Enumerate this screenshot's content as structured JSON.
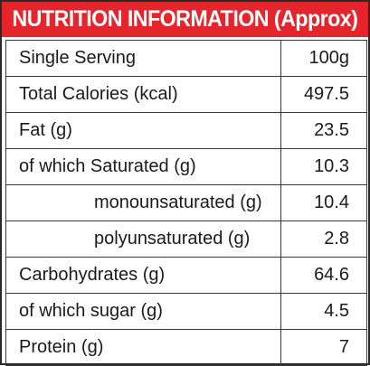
{
  "header": {
    "title": "NUTRITION INFORMATION (Approx)"
  },
  "rows": [
    {
      "label": "Single Serving",
      "value": "100g",
      "indent": false
    },
    {
      "label": "Total Calories (kcal)",
      "value": "497.5",
      "indent": false
    },
    {
      "label": "Fat (g)",
      "value": "23.5",
      "indent": false
    },
    {
      "label": "of which Saturated (g)",
      "value": "10.3",
      "indent": false
    },
    {
      "label": "monounsaturated (g)",
      "value": "10.4",
      "indent": true
    },
    {
      "label": "polyunsaturated (g)",
      "value": "2.8",
      "indent": true
    },
    {
      "label": "Carbohydrates (g)",
      "value": "64.6",
      "indent": false
    },
    {
      "label": "of which sugar (g)",
      "value": "4.5",
      "indent": false
    },
    {
      "label": "Protein (g)",
      "value": "7",
      "indent": false
    }
  ],
  "colors": {
    "header_background": "#e5242b",
    "header_text": "#ffffff",
    "border": "#2a2a2a",
    "text": "#1a1a1a"
  }
}
